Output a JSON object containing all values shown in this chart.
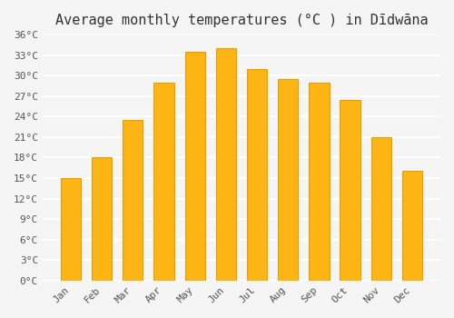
{
  "title": "Average monthly temperatures (°C ) in Dīdwāna",
  "months": [
    "Jan",
    "Feb",
    "Mar",
    "Apr",
    "May",
    "Jun",
    "Jul",
    "Aug",
    "Sep",
    "Oct",
    "Nov",
    "Dec"
  ],
  "values": [
    15,
    18,
    23.5,
    29,
    33.5,
    34,
    31,
    29.5,
    29,
    26.5,
    21,
    16
  ],
  "bar_color": "#FDB515",
  "bar_edge_color": "#E8A000",
  "background_color": "#f5f5f5",
  "grid_color": "#ffffff",
  "ytick_labels": [
    "0°C",
    "3°C",
    "6°C",
    "9°C",
    "12°C",
    "15°C",
    "18°C",
    "21°C",
    "24°C",
    "27°C",
    "30°C",
    "33°C",
    "36°C"
  ],
  "ytick_values": [
    0,
    3,
    6,
    9,
    12,
    15,
    18,
    21,
    24,
    27,
    30,
    33,
    36
  ],
  "ylim": [
    0,
    36
  ],
  "title_fontsize": 11,
  "tick_fontsize": 8
}
